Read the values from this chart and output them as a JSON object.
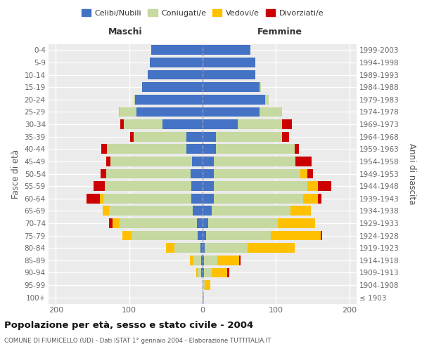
{
  "age_groups": [
    "100+",
    "95-99",
    "90-94",
    "85-89",
    "80-84",
    "75-79",
    "70-74",
    "65-69",
    "60-64",
    "55-59",
    "50-54",
    "45-49",
    "40-44",
    "35-39",
    "30-34",
    "25-29",
    "20-24",
    "15-19",
    "10-14",
    "5-9",
    "0-4"
  ],
  "birth_years": [
    "≤ 1903",
    "1904-1908",
    "1909-1913",
    "1914-1918",
    "1919-1923",
    "1924-1928",
    "1929-1933",
    "1934-1938",
    "1939-1943",
    "1944-1948",
    "1949-1953",
    "1954-1958",
    "1959-1963",
    "1964-1968",
    "1969-1973",
    "1974-1978",
    "1979-1983",
    "1984-1988",
    "1989-1993",
    "1994-1998",
    "1999-2003"
  ],
  "colors": {
    "celibi": "#4472c4",
    "coniugati": "#c5d9a0",
    "vedovi": "#ffc000",
    "divorziati": "#cc0000",
    "bg": "#ebebeb"
  },
  "maschi": {
    "celibi": [
      0,
      0,
      2,
      2,
      3,
      7,
      8,
      13,
      15,
      15,
      16,
      14,
      22,
      22,
      55,
      90,
      92,
      82,
      75,
      72,
      70
    ],
    "coniugati": [
      0,
      0,
      5,
      10,
      35,
      90,
      105,
      115,
      120,
      118,
      115,
      112,
      108,
      72,
      52,
      22,
      2,
      0,
      0,
      0,
      0
    ],
    "vedovi": [
      0,
      0,
      2,
      5,
      12,
      12,
      10,
      8,
      5,
      0,
      0,
      0,
      0,
      0,
      0,
      2,
      0,
      0,
      0,
      0,
      0
    ],
    "divorziati": [
      0,
      0,
      0,
      0,
      0,
      0,
      5,
      0,
      18,
      16,
      8,
      5,
      8,
      5,
      5,
      0,
      0,
      0,
      0,
      0,
      0
    ]
  },
  "femmine": {
    "celibi": [
      0,
      0,
      2,
      2,
      3,
      5,
      8,
      12,
      15,
      15,
      15,
      15,
      18,
      18,
      48,
      78,
      85,
      78,
      72,
      72,
      65
    ],
    "coniugati": [
      0,
      3,
      10,
      18,
      58,
      88,
      95,
      108,
      122,
      128,
      118,
      112,
      108,
      90,
      60,
      30,
      5,
      2,
      0,
      0,
      0
    ],
    "vedovi": [
      2,
      8,
      22,
      30,
      65,
      68,
      50,
      28,
      20,
      14,
      10,
      0,
      0,
      0,
      0,
      0,
      0,
      0,
      0,
      0,
      0
    ],
    "divorziati": [
      0,
      0,
      2,
      2,
      0,
      2,
      0,
      0,
      5,
      18,
      8,
      22,
      5,
      10,
      14,
      0,
      0,
      0,
      0,
      0,
      0
    ]
  },
  "xlim": 210,
  "title": "Popolazione per età, sesso e stato civile - 2004",
  "subtitle": "COMUNE DI FIUMICELLO (UD) - Dati ISTAT 1° gennaio 2004 - Elaborazione TUTTITALIA.IT",
  "ylabel": "Fasce di età",
  "ylabel_right": "Anni di nascita",
  "label_maschi": "Maschi",
  "label_femmine": "Femmine"
}
